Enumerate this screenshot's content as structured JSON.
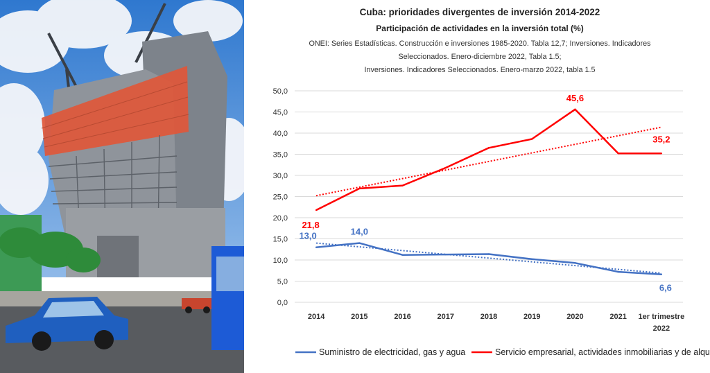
{
  "colors": {
    "sky": "#3d86d6",
    "building": "#8a8f96",
    "scaffold": "#e0573a",
    "car": "#1f5fbf",
    "bus": "#1d5bd6",
    "tree": "#2e8b3a",
    "series_blue": "#4472c4",
    "series_red": "#ff0000"
  },
  "photo": {
    "icons": [
      "crane-icon",
      "car-icon",
      "bus-icon"
    ]
  },
  "chart_data": {
    "type": "line",
    "title": "Cuba: prioridades divergentes de inversión 2014-2022",
    "subtitle": "Participación de actividades en la inversión total (%)",
    "source_lines": [
      "ONEI: Series Estadísticas. Construcción e inversiones 1985-2020. Tabla 12,7; Inversiones. Indicadores",
      "Seleccionados. Enero-diciembre 2022, Tabla 1.5;",
      "Inversiones. Indicadores Seleccionados. Enero-marzo 2022, tabla 1.5"
    ],
    "categories": [
      "2014",
      "2015",
      "2016",
      "2017",
      "2018",
      "2019",
      "2020",
      "2021",
      "1er trimestre 2022"
    ],
    "category_lines": [
      [
        "2014"
      ],
      [
        "2015"
      ],
      [
        "2016"
      ],
      [
        "2017"
      ],
      [
        "2018"
      ],
      [
        "2019"
      ],
      [
        "2020"
      ],
      [
        "2021"
      ],
      [
        "1er trimestre",
        "2022"
      ]
    ],
    "yticks": [
      "0,0",
      "5,0",
      "10,0",
      "15,0",
      "20,0",
      "25,0",
      "30,0",
      "35,0",
      "40,0",
      "45,0",
      "50,0"
    ],
    "ylim": [
      0,
      50
    ],
    "grid": true,
    "legend_position": "bottom",
    "series": [
      {
        "name": "Suministro de electricidad, gas y agua",
        "color": "#4472c4",
        "values": [
          13.0,
          14.0,
          11.2,
          11.3,
          11.4,
          10.2,
          9.3,
          7.2,
          6.6
        ],
        "trend": [
          14.0,
          6.9
        ],
        "labels": [
          {
            "index": 0,
            "text": "13,0"
          },
          {
            "index": 1,
            "text": "14,0"
          },
          {
            "index": 8,
            "text": "6,6"
          }
        ]
      },
      {
        "name": "Servicio empresarial, actividades inmobiliarias y de alquiler",
        "color": "#ff0000",
        "values": [
          21.8,
          26.9,
          27.6,
          31.8,
          36.5,
          38.6,
          45.6,
          35.2,
          35.2
        ],
        "trend": [
          25.2,
          41.4
        ],
        "labels": [
          {
            "index": 0,
            "text": "21,8"
          },
          {
            "index": 6,
            "text": "45,6"
          },
          {
            "index": 8,
            "text": "35,2"
          }
        ]
      }
    ]
  }
}
